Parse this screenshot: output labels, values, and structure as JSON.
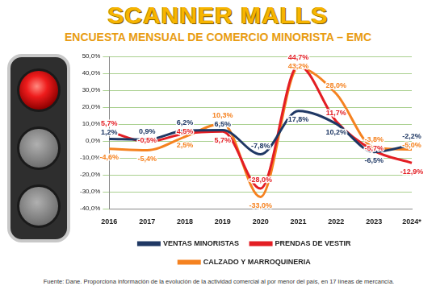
{
  "chart_data": {
    "type": "line",
    "title": "SCANNER MALLS",
    "subtitle": "ENCUESTA MENSUAL DE COMERCIO MINORISTA – EMC",
    "footnote": "Fuente: Dane. Proporciona información de la evolución de la actividad comercial al por menor del país, en 17 líneas de mercancía.",
    "categories": [
      "2016",
      "2017",
      "2018",
      "2019",
      "2020",
      "2021",
      "2022",
      "2023",
      "2024*"
    ],
    "series": [
      {
        "name": "VENTAS MINORISTAS",
        "color": "#1f3864",
        "values": [
          1.2,
          0.9,
          6.2,
          6.5,
          -7.8,
          17.8,
          10.2,
          -6.5,
          -2.2
        ],
        "value_labels": [
          "1,2%",
          "0,9%",
          "6,2%",
          "6,5%",
          "-7,8%",
          "17,8%",
          "10,2%",
          "-6,5%",
          "-2,2%"
        ]
      },
      {
        "name": "PRENDAS DE VESTIR",
        "color": "#e31e24",
        "values": [
          5.7,
          -0.5,
          4.5,
          5.7,
          -28.0,
          44.7,
          11.7,
          -5.7,
          -12.9
        ],
        "value_labels": [
          "5,7%",
          "-0,5%",
          "4,5%",
          "5,7%",
          "-28,0%",
          "44,7%",
          "11,7%",
          "-5,7%",
          "-12,9%"
        ]
      },
      {
        "name": "CALZADO Y MARROQUINERIA",
        "color": "#f58220",
        "values": [
          -4.6,
          -5.4,
          2.5,
          10.3,
          -33.0,
          43.2,
          28.0,
          -3.8,
          -5.0
        ],
        "value_labels": [
          "-4,6%",
          "-5,4%",
          "2,5%",
          "10,3%",
          "-33,0%",
          "43,2%",
          "28,0%",
          "-3,8%",
          "-5,0%"
        ]
      }
    ],
    "ylim": [
      -40,
      50
    ],
    "yticks": [
      {
        "value": -40,
        "label": "-40,0%"
      },
      {
        "value": -30,
        "label": "-30,0%"
      },
      {
        "value": -20,
        "label": "-20,0%"
      },
      {
        "value": -10,
        "label": "-10,0%"
      },
      {
        "value": 0,
        "label": "0,0%"
      },
      {
        "value": 10,
        "label": "10,0%"
      },
      {
        "value": 20,
        "label": "20,0%"
      },
      {
        "value": 30,
        "label": "30,0%"
      },
      {
        "value": 40,
        "label": "40,0%"
      },
      {
        "value": 50,
        "label": "50,0%"
      }
    ],
    "grid": true,
    "legend": "bottom",
    "data_labels": true,
    "line_style": "solid"
  }
}
